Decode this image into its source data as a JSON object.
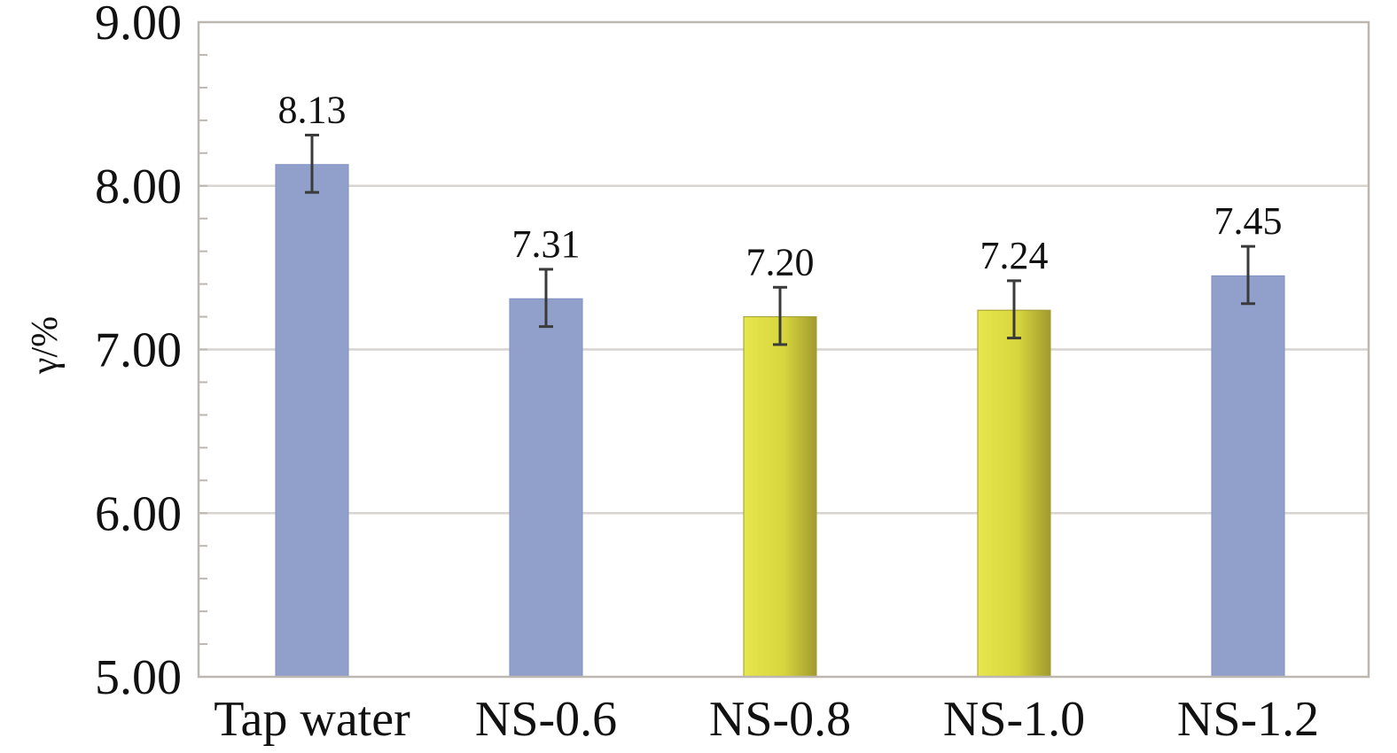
{
  "chart_data": {
    "type": "bar",
    "title": "",
    "xlabel": "",
    "ylabel": "γ/%",
    "ylim": [
      5.0,
      9.0
    ],
    "y_major_ticks": [
      5.0,
      6.0,
      7.0,
      8.0,
      9.0
    ],
    "y_tick_labels": [
      "5.00",
      "6.00",
      "7.00",
      "8.00",
      "9.00"
    ],
    "y_minor_step": 0.2,
    "grid": true,
    "legend": "none",
    "categories": [
      "Tap water",
      "NS-0.6",
      "NS-0.8",
      "NS-1.0",
      "NS-1.2"
    ],
    "values": [
      8.13,
      7.31,
      7.2,
      7.24,
      7.45
    ],
    "value_labels": [
      "8.13",
      "7.31",
      "7.20",
      "7.24",
      "7.45"
    ],
    "error_lower": [
      7.96,
      7.14,
      7.03,
      7.07,
      7.28
    ],
    "error_upper": [
      8.31,
      7.49,
      7.38,
      7.42,
      7.63
    ],
    "bar_styles": [
      "blue",
      "blue",
      "yellow",
      "yellow",
      "blue"
    ],
    "colors": {
      "blue": "#919FCB",
      "blue_edge": "#7F8FC1",
      "yellow_light": "#E6E74C",
      "yellow_mid": "#D7D63E",
      "yellow_dark": "#A19A2E",
      "grid": "#D9D4CF",
      "frame": "#BDB7B1",
      "error_bar": "#3A3A3A",
      "text": "#111111"
    }
  }
}
